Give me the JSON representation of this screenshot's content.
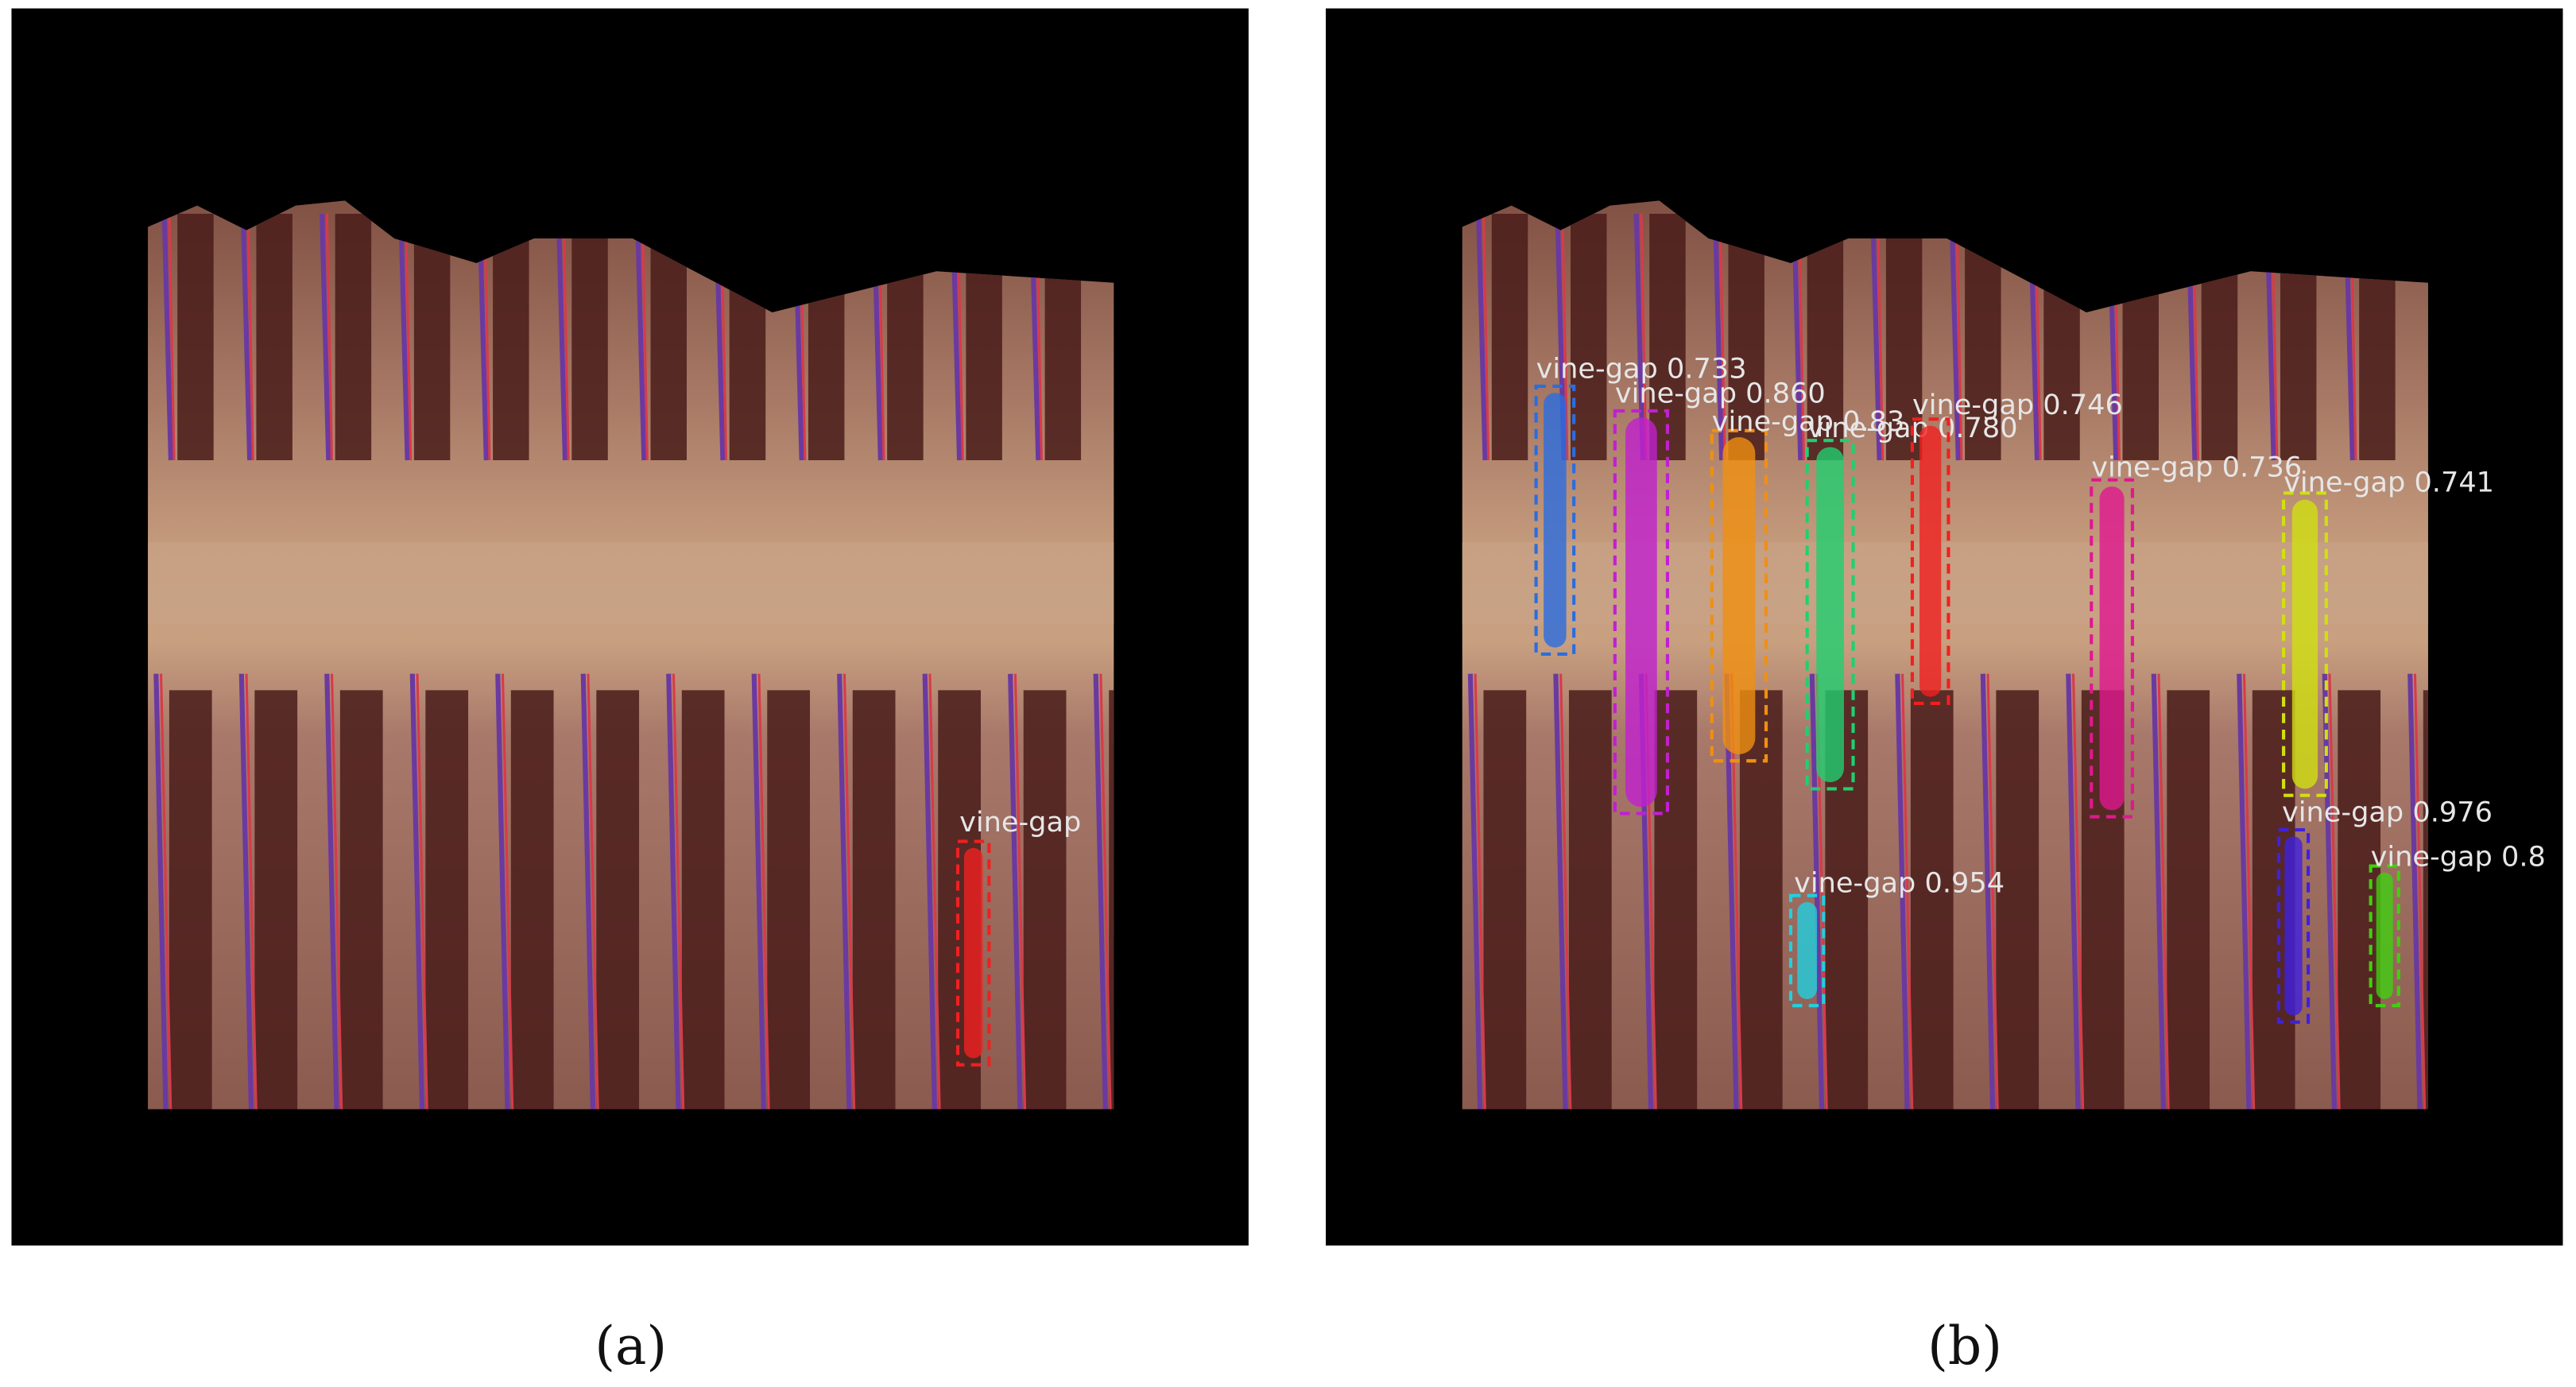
{
  "panels": [
    {
      "caption": "(a)",
      "detections": [
        {
          "label": "vine-gap"
        }
      ]
    },
    {
      "caption": "(b)",
      "detections": [
        {
          "label": "vine-gap 0.733"
        },
        {
          "label": "vine-gap 0.860"
        },
        {
          "label": "vine-gap 0.83"
        },
        {
          "label": "vine-gap 0.780"
        },
        {
          "label": "vine-gap 0.746"
        },
        {
          "label": "vine-gap 0.736"
        },
        {
          "label": "vine-gap 0.741"
        },
        {
          "label": "vine-gap 0.976"
        },
        {
          "label": "vine-gap 0.8"
        },
        {
          "label": "vine-gap 0.954"
        }
      ]
    }
  ]
}
